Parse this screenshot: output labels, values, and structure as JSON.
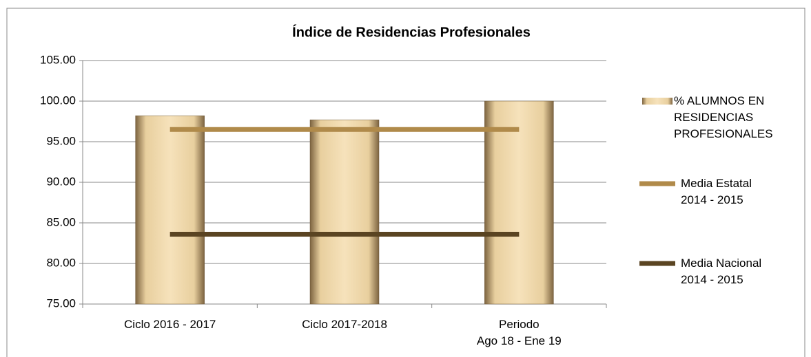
{
  "chart_data": {
    "type": "bar",
    "title": "Índice de Residencias Profesionales",
    "categories": [
      "Ciclo 2016 - 2017",
      "Ciclo 2017-2018",
      "Periodo\nAgo 18 - Ene 19"
    ],
    "series": [
      {
        "name": "% ALUMNOS EN RESIDENCIAS PROFESIONALES",
        "type": "bar",
        "color": "#f3dcae",
        "values": [
          98.2,
          97.7,
          100
        ]
      },
      {
        "name": "Media Estatal\n2014 - 2015",
        "type": "line",
        "color": "#b08a4a",
        "values": [
          96.5,
          96.5,
          96.5
        ]
      },
      {
        "name": "Media Nacional\n2014 - 2015",
        "type": "line",
        "color": "#5a4422",
        "values": [
          83.6,
          83.6,
          83.6
        ]
      }
    ],
    "ylim": [
      75,
      105
    ],
    "yticks": [
      {
        "value": 75,
        "label": "75.00"
      },
      {
        "value": 80,
        "label": "80.00"
      },
      {
        "value": 85,
        "label": "85.00"
      },
      {
        "value": 90,
        "label": "90.00"
      },
      {
        "value": 95,
        "label": "95.00"
      },
      {
        "value": 100,
        "label": "100.00"
      },
      {
        "value": 105,
        "label": "105.00"
      }
    ],
    "grid": true,
    "legend": "right"
  }
}
